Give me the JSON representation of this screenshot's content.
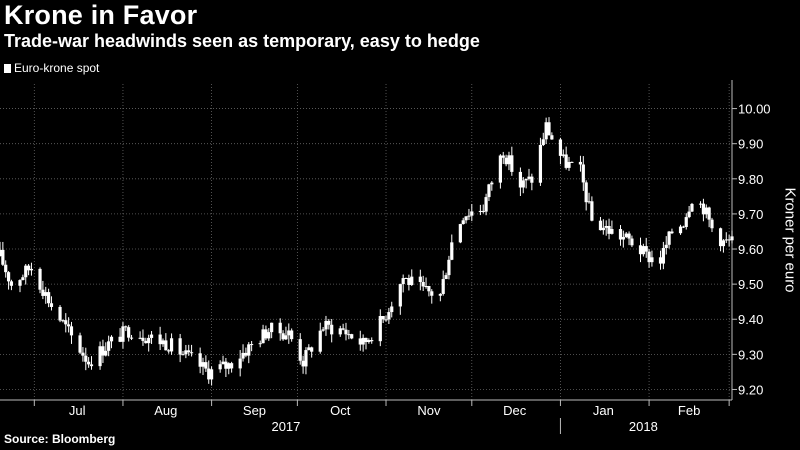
{
  "title": "Krone in Favor",
  "subtitle": "Trade-war headwinds seen as temporary, easy to hedge",
  "source": "Source: Bloomberg",
  "colors": {
    "background": "#000000",
    "candle_up": "#ffffff",
    "candle_down": "#ffffff",
    "grid": "#666666"
  },
  "chart_data": {
    "type": "candlestick",
    "series": [
      {
        "name": "Euro-krone spot",
        "style": "ohlc-candles"
      }
    ],
    "ylabel": "Kroner per euro",
    "ylim": [
      9.17,
      10.07
    ],
    "yticks": [
      9.2,
      9.3,
      9.4,
      9.5,
      9.6,
      9.7,
      9.8,
      9.9,
      10.0
    ],
    "ytick_labels": [
      "9.20",
      "9.30",
      "9.40",
      "9.50",
      "9.60",
      "9.70",
      "9.80",
      "9.90",
      "10.00"
    ],
    "y_axis_position": "right",
    "xlim": [
      "2017-06-19",
      "2018-03-02"
    ],
    "month_ticks": [
      "2017-07-01",
      "2017-08-01",
      "2017-09-01",
      "2017-10-01",
      "2017-11-01",
      "2017-12-01",
      "2018-01-01",
      "2018-02-01",
      "2018-03-01"
    ],
    "month_labels": [
      {
        "label": "Jul",
        "date": "2017-07-16"
      },
      {
        "label": "Aug",
        "date": "2017-08-16"
      },
      {
        "label": "Sep",
        "date": "2017-09-16"
      },
      {
        "label": "Oct",
        "date": "2017-10-16"
      },
      {
        "label": "Nov",
        "date": "2017-11-16"
      },
      {
        "label": "Dec",
        "date": "2017-12-16"
      },
      {
        "label": "Jan",
        "date": "2018-01-16"
      },
      {
        "label": "Feb",
        "date": "2018-02-15"
      }
    ],
    "year_labels": [
      {
        "label": "2017",
        "date": "2017-09-27"
      },
      {
        "label": "2018",
        "date": "2018-01-30"
      }
    ],
    "year_separator": "2018-01-01",
    "grid": true,
    "legend": "top-left",
    "close_anchors": [
      [
        "2017-06-19",
        9.58
      ],
      [
        "2017-06-23",
        9.5
      ],
      [
        "2017-06-30",
        9.55
      ],
      [
        "2017-07-07",
        9.44
      ],
      [
        "2017-07-14",
        9.35
      ],
      [
        "2017-07-20",
        9.28
      ],
      [
        "2017-07-27",
        9.33
      ],
      [
        "2017-08-03",
        9.37
      ],
      [
        "2017-08-10",
        9.35
      ],
      [
        "2017-08-17",
        9.33
      ],
      [
        "2017-08-24",
        9.29
      ],
      [
        "2017-08-31",
        9.25
      ],
      [
        "2017-09-07",
        9.27
      ],
      [
        "2017-09-14",
        9.32
      ],
      [
        "2017-09-21",
        9.37
      ],
      [
        "2017-09-28",
        9.36
      ],
      [
        "2017-10-03",
        9.28
      ],
      [
        "2017-10-10",
        9.38
      ],
      [
        "2017-10-17",
        9.37
      ],
      [
        "2017-10-24",
        9.33
      ],
      [
        "2017-10-31",
        9.4
      ],
      [
        "2017-11-07",
        9.52
      ],
      [
        "2017-11-14",
        9.48
      ],
      [
        "2017-11-20",
        9.47
      ],
      [
        "2017-11-24",
        9.62
      ],
      [
        "2017-11-28",
        9.7
      ],
      [
        "2017-12-05",
        9.72
      ],
      [
        "2017-12-09",
        9.82
      ],
      [
        "2017-12-12",
        9.88
      ],
      [
        "2017-12-18",
        9.78
      ],
      [
        "2017-12-22",
        9.8
      ],
      [
        "2017-12-27",
        9.95
      ],
      [
        "2018-01-02",
        9.85
      ],
      [
        "2018-01-08",
        9.82
      ],
      [
        "2018-01-12",
        9.68
      ],
      [
        "2018-01-19",
        9.65
      ],
      [
        "2018-01-26",
        9.62
      ],
      [
        "2018-01-31",
        9.58
      ],
      [
        "2018-02-05",
        9.57
      ],
      [
        "2018-02-09",
        9.65
      ],
      [
        "2018-02-13",
        9.68
      ],
      [
        "2018-02-16",
        9.75
      ],
      [
        "2018-02-20",
        9.72
      ],
      [
        "2018-02-23",
        9.66
      ],
      [
        "2018-02-27",
        9.62
      ],
      [
        "2018-03-02",
        9.62
      ]
    ]
  }
}
